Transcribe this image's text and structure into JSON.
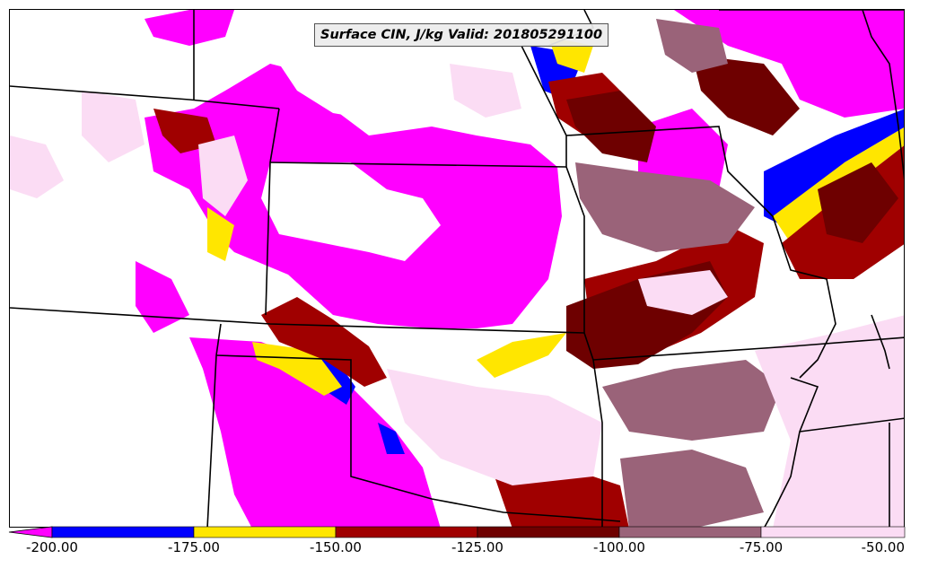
{
  "map": {
    "title": "Surface CIN, J/kg Valid: 201805291100"
  },
  "legend": {
    "colors": {
      "lt_-200": "#ff00ff",
      "-200_-175": "#0000ff",
      "-175_-150": "#ffe600",
      "-150_-125": "#a00000",
      "-125_-100": "#6e0000",
      "-100_-75": "#9a6379",
      "-75_-50": "#fbdcf4",
      "gt_-50": "#ffffff"
    },
    "bounds": [
      -200,
      -175,
      -150,
      -125,
      -100,
      -75,
      -50
    ],
    "ticks": [
      "-200.00",
      "-175.00",
      "-150.00",
      "-125.00",
      "-100.00",
      "-75.00",
      "-50.00"
    ]
  }
}
